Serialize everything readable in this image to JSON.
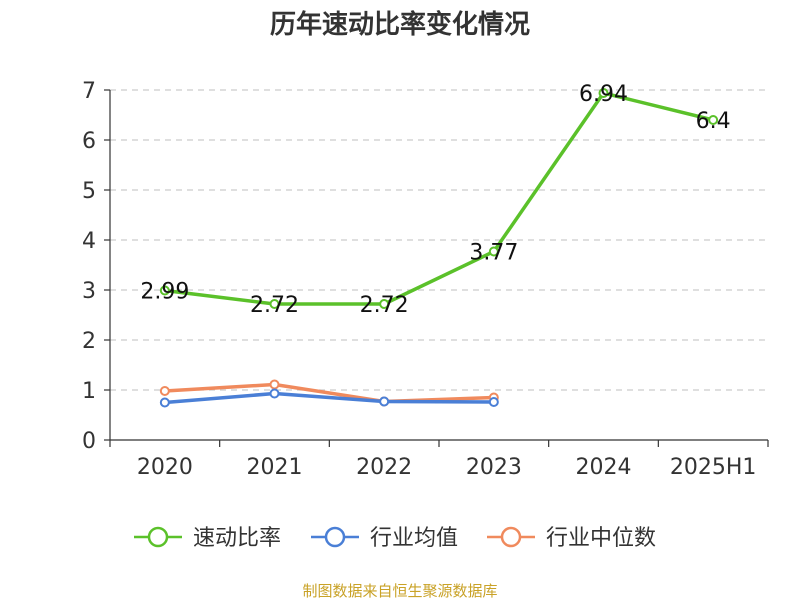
{
  "chart_data": {
    "type": "line",
    "title": "历年速动比率变化情况",
    "categories": [
      "2020",
      "2021",
      "2022",
      "2023",
      "2024",
      "2025H1"
    ],
    "ylim": [
      0,
      7
    ],
    "yticks": [
      "0",
      "1",
      "2",
      "3",
      "4",
      "5",
      "6",
      "7"
    ],
    "grid": true,
    "legend_position": "bottom",
    "series": [
      {
        "name": "速动比率",
        "color": "#5bc12a",
        "values": [
          2.99,
          2.72,
          2.72,
          3.77,
          6.94,
          6.4
        ],
        "labels": [
          "2.99",
          "2.72",
          "2.72",
          "3.77",
          "6.94",
          "6.4"
        ]
      },
      {
        "name": "行业均值",
        "color": "#4a7fd6",
        "values": [
          0.75,
          0.93,
          0.77,
          0.76,
          null,
          null
        ]
      },
      {
        "name": "行业中位数",
        "color": "#f08a5d",
        "values": [
          0.98,
          1.11,
          0.77,
          0.85,
          null,
          null
        ]
      }
    ]
  },
  "source": {
    "text": "制图数据来自恒生聚源数据库",
    "color": "#c9a227"
  }
}
